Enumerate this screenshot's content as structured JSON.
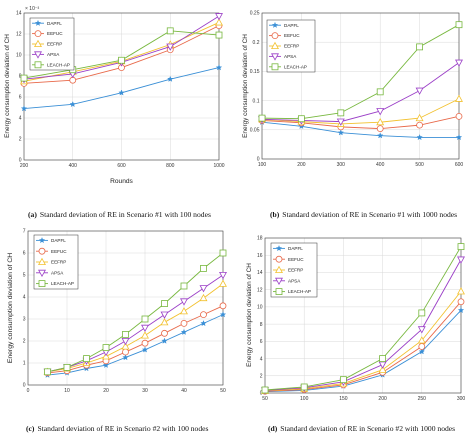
{
  "styles": [
    {
      "color": "#3a8fd6",
      "marker": "star"
    },
    {
      "color": "#e8694a",
      "marker": "circle"
    },
    {
      "color": "#f2c12e",
      "marker": "triangle-up"
    },
    {
      "color": "#9b3fc7",
      "marker": "triangle-down"
    },
    {
      "color": "#78b83f",
      "marker": "square"
    }
  ],
  "chart_data": [
    {
      "type": "line",
      "title": "",
      "xlabel": "Rounds",
      "ylabel": "Energy consumption deviation of CH",
      "y_exponent": "× 10⁻³",
      "x": [
        200,
        400,
        600,
        800,
        1000
      ],
      "xlim": [
        200,
        1000
      ],
      "ylim": [
        0,
        14
      ],
      "xticks": [
        200,
        400,
        600,
        800,
        1000
      ],
      "yticks": [
        0,
        2,
        4,
        6,
        8,
        10,
        12,
        14
      ],
      "legend": "top-left",
      "series": [
        {
          "name": "DAPFL",
          "values": [
            4.9,
            5.3,
            6.4,
            7.7,
            8.8
          ]
        },
        {
          "name": "EEFUC",
          "values": [
            7.3,
            7.6,
            8.8,
            10.5,
            12.8
          ]
        },
        {
          "name": "EEFRP",
          "values": [
            7.5,
            8.4,
            9.4,
            11.0,
            13.1
          ]
        },
        {
          "name": "APSA",
          "values": [
            7.7,
            8.2,
            9.3,
            10.8,
            13.7
          ]
        },
        {
          "name": "LEACH-AP",
          "values": [
            7.8,
            8.6,
            9.5,
            12.3,
            11.9
          ]
        }
      ],
      "caption_label": "(a)",
      "caption_text": "Standard deviation of RE in Scenario #1 with 100 nodes"
    },
    {
      "type": "line",
      "title": "",
      "xlabel": "",
      "ylabel": "Energy consumption deviation of CH",
      "x": [
        100,
        200,
        300,
        400,
        500,
        600
      ],
      "xlim": [
        100,
        600
      ],
      "ylim": [
        0,
        0.25
      ],
      "xticks": [
        100,
        200,
        300,
        400,
        500,
        600
      ],
      "yticks": [
        0,
        0.05,
        0.1,
        0.15,
        0.2,
        0.25
      ],
      "legend": "top-left",
      "series": [
        {
          "name": "DAPFL",
          "values": [
            0.063,
            0.056,
            0.045,
            0.04,
            0.037,
            0.037
          ]
        },
        {
          "name": "EEFUC",
          "values": [
            0.066,
            0.062,
            0.055,
            0.052,
            0.058,
            0.073
          ]
        },
        {
          "name": "EEFRP",
          "values": [
            0.068,
            0.064,
            0.06,
            0.063,
            0.07,
            0.103
          ]
        },
        {
          "name": "APSA",
          "values": [
            0.068,
            0.066,
            0.064,
            0.082,
            0.117,
            0.165
          ]
        },
        {
          "name": "LEACH-AP",
          "values": [
            0.07,
            0.069,
            0.079,
            0.115,
            0.192,
            0.23
          ]
        }
      ],
      "caption_label": "(b)",
      "caption_text": "Standard deviation of RE in Scenario #1 with 1000 nodes"
    },
    {
      "type": "line",
      "title": "",
      "xlabel": "",
      "ylabel": "Energy consumption deviation of CH",
      "x": [
        5,
        10,
        15,
        20,
        25,
        30,
        35,
        40,
        45,
        50
      ],
      "xlim": [
        0,
        50
      ],
      "ylim": [
        0,
        7
      ],
      "xticks": [
        0,
        10,
        20,
        30,
        40,
        50
      ],
      "yticks": [
        0,
        1,
        2,
        3,
        4,
        5,
        6,
        7
      ],
      "legend": "top-left",
      "series": [
        {
          "name": "DAPFL",
          "values": [
            0.45,
            0.55,
            0.75,
            0.9,
            1.25,
            1.6,
            2.0,
            2.4,
            2.8,
            3.2
          ]
        },
        {
          "name": "EEFUC",
          "values": [
            0.55,
            0.65,
            0.9,
            1.1,
            1.5,
            1.9,
            2.35,
            2.8,
            3.2,
            3.6
          ]
        },
        {
          "name": "EEFRP",
          "values": [
            0.6,
            0.75,
            1.0,
            1.3,
            1.75,
            2.25,
            2.85,
            3.35,
            3.95,
            4.6
          ]
        },
        {
          "name": "APSA",
          "values": [
            0.6,
            0.8,
            1.1,
            1.5,
            2.0,
            2.6,
            3.2,
            3.8,
            4.4,
            5.0
          ]
        },
        {
          "name": "LEACH-AP",
          "values": [
            0.6,
            0.8,
            1.2,
            1.7,
            2.3,
            3.0,
            3.7,
            4.5,
            5.3,
            6.0
          ]
        }
      ],
      "caption_label": "(c)",
      "caption_text": "Standard deviation of RE in Scenario #2 with 100 nodes"
    },
    {
      "type": "line",
      "title": "",
      "xlabel": "",
      "ylabel": "Energy consumption deviation of CH",
      "x": [
        50,
        100,
        150,
        200,
        250,
        300
      ],
      "xlim": [
        50,
        300
      ],
      "ylim": [
        0,
        18
      ],
      "xticks": [
        50,
        100,
        150,
        200,
        250,
        300
      ],
      "yticks": [
        0,
        2,
        4,
        6,
        8,
        10,
        12,
        14,
        16,
        18
      ],
      "legend": "top-left",
      "series": [
        {
          "name": "DAPFL",
          "values": [
            0.15,
            0.3,
            0.8,
            2.1,
            4.8,
            9.6
          ]
        },
        {
          "name": "EEFUC",
          "values": [
            0.2,
            0.4,
            0.95,
            2.4,
            5.4,
            10.6
          ]
        },
        {
          "name": "EEFRP",
          "values": [
            0.25,
            0.5,
            1.1,
            2.7,
            6.1,
            11.8
          ]
        },
        {
          "name": "APSA",
          "values": [
            0.3,
            0.6,
            1.3,
            3.3,
            7.4,
            15.5
          ]
        },
        {
          "name": "LEACH-AP",
          "values": [
            0.35,
            0.7,
            1.55,
            4.0,
            9.3,
            17.0
          ]
        }
      ],
      "caption_label": "(d)",
      "caption_text": "Standard deviation of RE in Scenario #2 with  1000 nodes"
    }
  ]
}
